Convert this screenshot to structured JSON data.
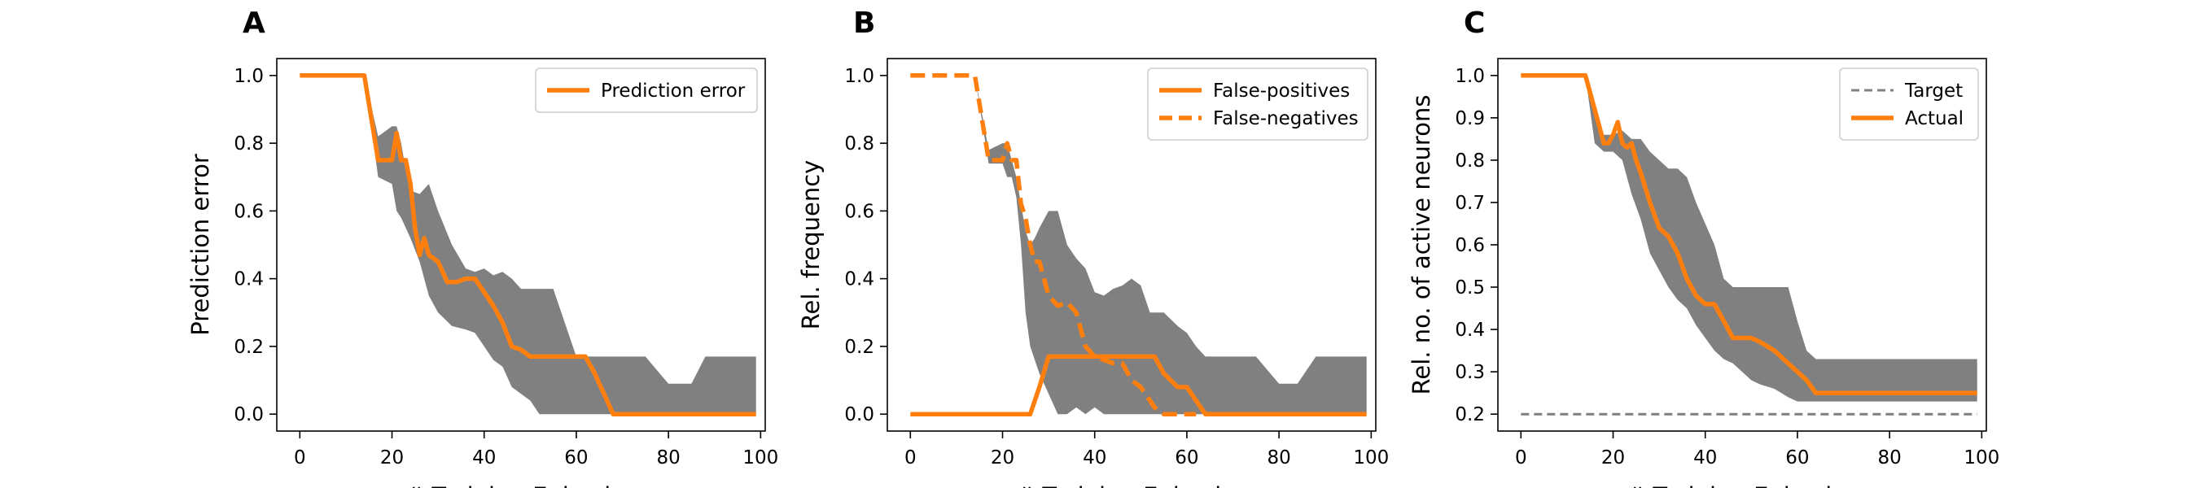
{
  "chart_data": [
    {
      "panel_letter": "A",
      "type": "line",
      "xlabel": "# Training Episodes",
      "ylabel": "Prediction error",
      "xlim": [
        -5,
        101
      ],
      "ylim": [
        -0.05,
        1.05
      ],
      "xticks": [
        0,
        20,
        40,
        60,
        80,
        100
      ],
      "yticks": [
        0.0,
        0.2,
        0.4,
        0.6,
        0.8,
        1.0
      ],
      "ytick_labels": [
        "0.0",
        "0.2",
        "0.4",
        "0.6",
        "0.8",
        "1.0"
      ],
      "grid": false,
      "legend_position": "top-right",
      "band": {
        "color": "#808080",
        "x": [
          14,
          17,
          20,
          21,
          22,
          23,
          24,
          26,
          28,
          30,
          33,
          36,
          38,
          40,
          42,
          44,
          46,
          48,
          50,
          52,
          55,
          58,
          60,
          62,
          64,
          66,
          68,
          70,
          75,
          80,
          85,
          88,
          92,
          96,
          99
        ],
        "upper": [
          1.0,
          0.82,
          0.85,
          0.85,
          0.8,
          0.72,
          0.66,
          0.65,
          0.68,
          0.6,
          0.5,
          0.43,
          0.42,
          0.43,
          0.41,
          0.42,
          0.4,
          0.37,
          0.37,
          0.37,
          0.37,
          0.25,
          0.17,
          0.17,
          0.17,
          0.17,
          0.17,
          0.17,
          0.17,
          0.09,
          0.09,
          0.17,
          0.17,
          0.17,
          0.17
        ],
        "lower": [
          1.0,
          0.7,
          0.68,
          0.6,
          0.58,
          0.55,
          0.52,
          0.45,
          0.35,
          0.3,
          0.26,
          0.25,
          0.24,
          0.2,
          0.16,
          0.14,
          0.08,
          0.06,
          0.04,
          0.0,
          0.0,
          0.0,
          0.0,
          0.0,
          0.0,
          0.0,
          0.0,
          0.0,
          0.0,
          0.0,
          0.0,
          0.0,
          0.0,
          0.0,
          0.0
        ]
      },
      "series": [
        {
          "name": "Prediction error",
          "color": "#ff7f0e",
          "style": "solid",
          "x": [
            0,
            14,
            17,
            20,
            21,
            22,
            23,
            24,
            25,
            26,
            27,
            28,
            30,
            32,
            34,
            36,
            38,
            40,
            42,
            44,
            46,
            48,
            50,
            52,
            55,
            58,
            60,
            62,
            64,
            66,
            68,
            70,
            80,
            90,
            99
          ],
          "y": [
            1.0,
            1.0,
            0.75,
            0.75,
            0.83,
            0.75,
            0.75,
            0.68,
            0.55,
            0.47,
            0.52,
            0.47,
            0.45,
            0.39,
            0.39,
            0.4,
            0.4,
            0.36,
            0.32,
            0.27,
            0.2,
            0.19,
            0.17,
            0.17,
            0.17,
            0.17,
            0.17,
            0.17,
            0.12,
            0.06,
            0.0,
            0.0,
            0.0,
            0.0,
            0.0
          ]
        }
      ]
    },
    {
      "panel_letter": "B",
      "type": "line",
      "xlabel": "# Training Episodes",
      "ylabel": "Rel. frequency",
      "xlim": [
        -5,
        101
      ],
      "ylim": [
        -0.05,
        1.05
      ],
      "xticks": [
        0,
        20,
        40,
        60,
        80,
        100
      ],
      "yticks": [
        0.0,
        0.2,
        0.4,
        0.6,
        0.8,
        1.0
      ],
      "ytick_labels": [
        "0.0",
        "0.2",
        "0.4",
        "0.6",
        "0.8",
        "1.0"
      ],
      "grid": false,
      "legend_position": "top-right",
      "band": {
        "color": "#808080",
        "x": [
          14,
          17,
          20,
          21,
          22,
          23,
          24,
          25,
          26,
          27,
          28,
          30,
          32,
          34,
          36,
          38,
          40,
          42,
          44,
          46,
          48,
          50,
          52,
          55,
          58,
          60,
          62,
          64,
          66,
          70,
          75,
          80,
          84,
          88,
          92,
          96,
          99
        ],
        "upper": [
          1.0,
          0.78,
          0.8,
          0.8,
          0.75,
          0.7,
          0.62,
          0.54,
          0.5,
          0.52,
          0.55,
          0.6,
          0.6,
          0.5,
          0.46,
          0.43,
          0.36,
          0.35,
          0.37,
          0.38,
          0.4,
          0.38,
          0.3,
          0.3,
          0.26,
          0.24,
          0.2,
          0.17,
          0.17,
          0.17,
          0.17,
          0.09,
          0.09,
          0.17,
          0.17,
          0.17,
          0.17
        ],
        "lower": [
          1.0,
          0.74,
          0.74,
          0.7,
          0.7,
          0.64,
          0.5,
          0.3,
          0.2,
          0.16,
          0.12,
          0.06,
          0.0,
          0.0,
          0.02,
          0.0,
          0.02,
          0.0,
          0.0,
          0.0,
          0.0,
          0.0,
          0.0,
          0.0,
          0.0,
          0.0,
          0.0,
          0.0,
          0.0,
          0.0,
          0.0,
          0.0,
          0.0,
          0.0,
          0.0,
          0.0,
          0.0
        ]
      },
      "series": [
        {
          "name": "False-positives",
          "color": "#ff7f0e",
          "style": "solid",
          "x": [
            0,
            26,
            28,
            30,
            33,
            36,
            40,
            45,
            50,
            53,
            55,
            58,
            60,
            62,
            64,
            70,
            80,
            90,
            99
          ],
          "y": [
            0.0,
            0.0,
            0.08,
            0.17,
            0.17,
            0.17,
            0.17,
            0.17,
            0.17,
            0.17,
            0.12,
            0.08,
            0.08,
            0.04,
            0.0,
            0.0,
            0.0,
            0.0,
            0.0
          ]
        },
        {
          "name": "False-negatives",
          "color": "#ff7f0e",
          "style": "dashed",
          "x": [
            0,
            14,
            17,
            20,
            21,
            22,
            23,
            24,
            25,
            26,
            27,
            28,
            30,
            32,
            34,
            36,
            38,
            40,
            44,
            46,
            48,
            50,
            53,
            55,
            58,
            62
          ],
          "y": [
            1.0,
            1.0,
            0.75,
            0.75,
            0.8,
            0.75,
            0.75,
            0.62,
            0.58,
            0.5,
            0.45,
            0.45,
            0.35,
            0.32,
            0.33,
            0.3,
            0.2,
            0.17,
            0.15,
            0.15,
            0.1,
            0.08,
            0.02,
            0.0,
            0.0,
            0.0
          ]
        }
      ]
    },
    {
      "panel_letter": "C",
      "type": "line",
      "xlabel": "# Training Episodes",
      "ylabel": "Rel. no. of active neurons",
      "xlim": [
        -5,
        101
      ],
      "ylim": [
        0.16,
        1.04
      ],
      "xticks": [
        0,
        20,
        40,
        60,
        80,
        100
      ],
      "yticks": [
        0.2,
        0.3,
        0.4,
        0.5,
        0.6,
        0.7,
        0.8,
        0.9,
        1.0
      ],
      "ytick_labels": [
        "0.2",
        "0.3",
        "0.4",
        "0.5",
        "0.6",
        "0.7",
        "0.8",
        "0.9",
        "1.0"
      ],
      "grid": false,
      "legend_position": "top-right",
      "band": {
        "color": "#808080",
        "x": [
          14,
          16,
          18,
          20,
          22,
          24,
          26,
          28,
          30,
          32,
          34,
          36,
          38,
          40,
          42,
          44,
          46,
          48,
          50,
          52,
          55,
          58,
          60,
          62,
          64,
          66,
          70,
          80,
          90,
          99
        ],
        "upper": [
          1.0,
          0.9,
          0.86,
          0.86,
          0.87,
          0.85,
          0.85,
          0.82,
          0.8,
          0.78,
          0.78,
          0.76,
          0.7,
          0.65,
          0.6,
          0.52,
          0.5,
          0.5,
          0.5,
          0.5,
          0.5,
          0.5,
          0.42,
          0.35,
          0.33,
          0.33,
          0.33,
          0.33,
          0.33,
          0.33
        ],
        "lower": [
          1.0,
          0.84,
          0.82,
          0.82,
          0.8,
          0.72,
          0.66,
          0.58,
          0.54,
          0.5,
          0.47,
          0.45,
          0.41,
          0.38,
          0.35,
          0.33,
          0.32,
          0.3,
          0.28,
          0.27,
          0.26,
          0.24,
          0.23,
          0.23,
          0.23,
          0.23,
          0.23,
          0.23,
          0.23,
          0.23
        ]
      },
      "series": [
        {
          "name": "Target",
          "color": "#808080",
          "style": "dashed",
          "x": [
            0,
            99
          ],
          "y": [
            0.2,
            0.2
          ]
        },
        {
          "name": "Actual",
          "color": "#ff7f0e",
          "style": "solid",
          "x": [
            0,
            14,
            16,
            18,
            19,
            20,
            21,
            22,
            23,
            24,
            25,
            26,
            28,
            30,
            32,
            34,
            36,
            38,
            40,
            42,
            44,
            46,
            48,
            50,
            52,
            55,
            58,
            60,
            62,
            64,
            66,
            70,
            80,
            90,
            99
          ],
          "y": [
            1.0,
            1.0,
            0.92,
            0.84,
            0.84,
            0.86,
            0.89,
            0.84,
            0.83,
            0.84,
            0.8,
            0.77,
            0.7,
            0.64,
            0.62,
            0.58,
            0.52,
            0.48,
            0.46,
            0.46,
            0.42,
            0.38,
            0.38,
            0.38,
            0.37,
            0.35,
            0.32,
            0.3,
            0.28,
            0.25,
            0.25,
            0.25,
            0.25,
            0.25,
            0.25
          ]
        }
      ]
    }
  ]
}
